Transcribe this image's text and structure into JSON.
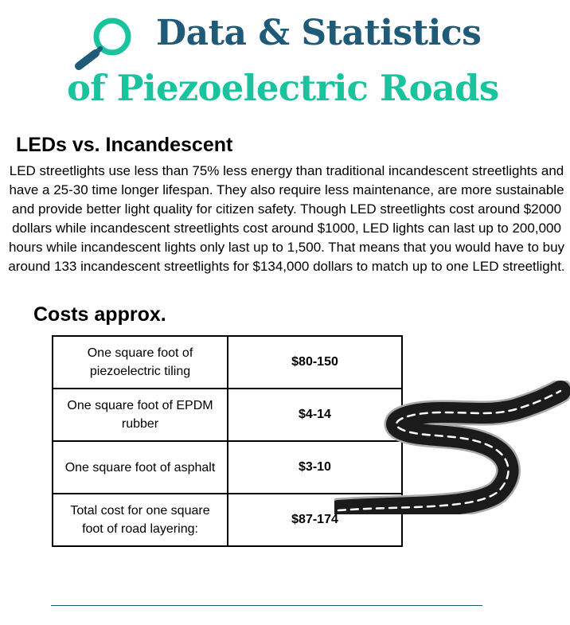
{
  "header": {
    "title_line1": "Data & Statistics",
    "title_line2": "of Piezoelectric Roads",
    "icon": "magnifying-glass-icon"
  },
  "leds_section": {
    "heading": "LEDs vs. Incandescent",
    "body": "LED streetlights use less than 75% less energy than traditional incandescent streetlights and have a 25-30 time longer lifespan. They also require less maintenance, are more sustainable and provide better light quality for citizen safety. Though LED streetlights cost around $2000 dollars while incandescent streetlights cost around $1000, LED lights can last up to 200,000 hours while incandescent lights only last up to 1,500. That means that you would have to buy around 133 incandescent streetlights for $134,000 dollars to match up to one LED streetlight."
  },
  "costs_section": {
    "heading": "Costs approx.",
    "rows": [
      {
        "item": "One square foot of piezoelectric tiling",
        "price": "$80-150"
      },
      {
        "item": "One square foot of EPDM rubber",
        "price": "$4-14"
      },
      {
        "item": "One square foot of asphalt",
        "price": "$3-10"
      },
      {
        "item": "Total cost for one square foot of road layering:",
        "price": "$87-174"
      }
    ]
  },
  "colors": {
    "title_dark": "#1f5a79",
    "title_accent": "#18c39d",
    "road": "#1b1b1b"
  },
  "decorations": {
    "road_icon": "winding-road-icon"
  }
}
